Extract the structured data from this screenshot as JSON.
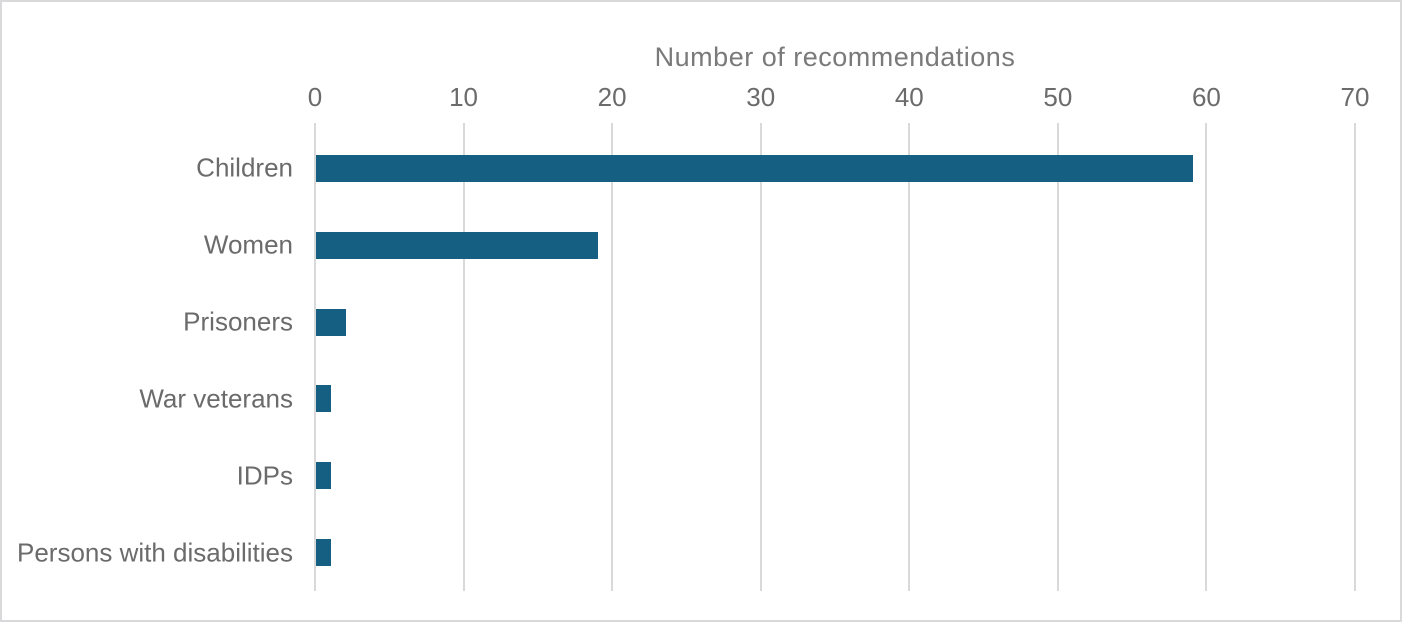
{
  "chart_data": {
    "type": "bar",
    "orientation": "horizontal",
    "title": "Number of recommendations",
    "categories": [
      "Children",
      "Women",
      "Prisoners",
      "War veterans",
      "IDPs",
      "Persons with disabilities"
    ],
    "values": [
      59,
      19,
      2,
      1,
      1,
      1
    ],
    "xlabel": "Number of recommendations",
    "ylabel": "",
    "xlim": [
      0,
      70
    ],
    "xticks": [
      0,
      10,
      20,
      30,
      40,
      50,
      60,
      70
    ],
    "grid": true,
    "legend": false,
    "colors": {
      "bar": "#156082",
      "gridline": "#d9d9d9",
      "title_text": "#7a7a7a",
      "axis_text": "#6b6b6b",
      "border": "#d9d9dc"
    }
  }
}
